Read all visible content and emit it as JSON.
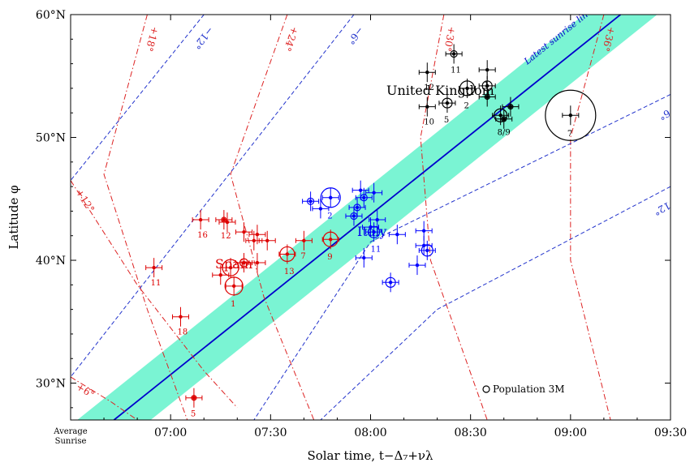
{
  "chart_data": {
    "type": "scatter",
    "xlabel": "Solar time, t−Δ₇+νλ",
    "ylabel": "Latitude φ",
    "xlim": [
      "06:30",
      "09:30"
    ],
    "ylim": [
      27,
      60
    ],
    "x_ticks": [
      "07:00",
      "07:30",
      "08:00",
      "08:30",
      "09:00",
      "09:30"
    ],
    "x_tick_first": [
      "Average",
      "Sunrise"
    ],
    "y_ticks": [
      {
        "value": 30,
        "label": "30°N"
      },
      {
        "value": 40,
        "label": "40°N"
      },
      {
        "value": 50,
        "label": "50°N"
      },
      {
        "value": 60,
        "label": "60°N"
      }
    ],
    "grid": false,
    "latest_sunrise_line": {
      "label": "Latest sunrise line",
      "points": [
        [
          "06:43",
          27
        ],
        [
          "09:15",
          60
        ]
      ],
      "band_half_width_minutes": 11
    },
    "contours_red": [
      {
        "label": "+18°",
        "points": [
          [
            "06:53",
            60
          ],
          [
            "06:40",
            47
          ],
          [
            "06:53",
            36
          ],
          [
            "07:05",
            27
          ]
        ]
      },
      {
        "label": "+24°",
        "points": [
          [
            "07:35",
            60
          ],
          [
            "07:18",
            47
          ],
          [
            "07:28",
            37
          ],
          [
            "07:43",
            27
          ]
        ]
      },
      {
        "label": "+30°",
        "points": [
          [
            "08:22",
            60
          ],
          [
            "08:15",
            50
          ],
          [
            "08:18",
            40
          ],
          [
            "08:35",
            27
          ]
        ]
      },
      {
        "label": "+36°",
        "points": [
          [
            "09:10",
            60
          ],
          [
            "09:00",
            50
          ],
          [
            "09:00",
            40
          ],
          [
            "09:12",
            27
          ]
        ]
      },
      {
        "label": "+12°",
        "points": [
          [
            "06:30",
            46.5
          ],
          [
            "06:50",
            38
          ],
          [
            "07:10",
            31
          ],
          [
            "07:20",
            28
          ]
        ]
      },
      {
        "label": "+6°",
        "points": [
          [
            "06:30",
            30.5
          ],
          [
            "06:42",
            28.5
          ],
          [
            "06:50",
            27
          ]
        ]
      }
    ],
    "contours_blue": [
      {
        "label": "−12°",
        "points": [
          [
            "07:10",
            60
          ],
          [
            "06:30",
            46.5
          ]
        ]
      },
      {
        "label": "−6°",
        "points": [
          [
            "07:55",
            60
          ],
          [
            "06:30",
            30.5
          ]
        ]
      },
      {
        "label": "+6°",
        "points": [
          [
            "09:30",
            53.5
          ],
          [
            "08:00",
            41.5
          ],
          [
            "07:25",
            27
          ]
        ]
      },
      {
        "label": "+12°",
        "points": [
          [
            "09:30",
            46
          ],
          [
            "08:20",
            36
          ],
          [
            "07:45",
            27
          ]
        ]
      }
    ],
    "series": [
      {
        "name": "United Kingdom",
        "color": "#000000",
        "points": [
          {
            "x": "08:25",
            "y": 56.8,
            "r": 4,
            "label": "11"
          },
          {
            "x": "08:17",
            "y": 55.3,
            "r": 0,
            "label": "12"
          },
          {
            "x": "08:35",
            "y": 55.5,
            "r": 0,
            "label": "1"
          },
          {
            "x": "08:29",
            "y": 54.0,
            "r": 9,
            "label": "2"
          },
          {
            "x": "08:35",
            "y": 54.2,
            "r": 6,
            "label": ""
          },
          {
            "x": "08:35",
            "y": 53.3,
            "r": 3,
            "label": ""
          },
          {
            "x": "08:23",
            "y": 52.8,
            "r": 6,
            "label": "5"
          },
          {
            "x": "08:17",
            "y": 52.5,
            "r": 0,
            "label": "10"
          },
          {
            "x": "08:42",
            "y": 52.5,
            "r": 3,
            "label": ""
          },
          {
            "x": "08:39",
            "y": 51.8,
            "r": 8,
            "label": "8/9"
          },
          {
            "x": "08:40",
            "y": 51.5,
            "r": 3,
            "label": ""
          },
          {
            "x": "09:00",
            "y": 51.8,
            "r": 31,
            "label": "7"
          }
        ]
      },
      {
        "name": "Italy",
        "color": "#0000ff",
        "points": [
          {
            "x": "07:48",
            "y": 45.1,
            "r": 12,
            "label": "2"
          },
          {
            "x": "07:42",
            "y": 44.8,
            "r": 4,
            "label": ""
          },
          {
            "x": "07:45",
            "y": 44.2,
            "r": 0,
            "label": ""
          },
          {
            "x": "07:57",
            "y": 45.7,
            "r": 0,
            "label": ""
          },
          {
            "x": "08:01",
            "y": 45.5,
            "r": 0,
            "label": ""
          },
          {
            "x": "07:58",
            "y": 45.1,
            "r": 4,
            "label": ""
          },
          {
            "x": "07:56",
            "y": 44.3,
            "r": 4,
            "label": ""
          },
          {
            "x": "07:55",
            "y": 43.6,
            "r": 4,
            "label": ""
          },
          {
            "x": "08:02",
            "y": 43.3,
            "r": 0,
            "label": ""
          },
          {
            "x": "08:00",
            "y": 42.7,
            "r": 0,
            "label": ""
          },
          {
            "x": "08:01",
            "y": 42.3,
            "r": 7,
            "label": "11"
          },
          {
            "x": "08:08",
            "y": 42.1,
            "r": 0,
            "label": ""
          },
          {
            "x": "08:16",
            "y": 42.4,
            "r": 0,
            "label": ""
          },
          {
            "x": "08:16",
            "y": 41.2,
            "r": 0,
            "label": ""
          },
          {
            "x": "08:17",
            "y": 40.8,
            "r": 7,
            "label": ""
          },
          {
            "x": "07:58",
            "y": 40.2,
            "r": 0,
            "label": ""
          },
          {
            "x": "08:14",
            "y": 39.6,
            "r": 0,
            "label": ""
          },
          {
            "x": "08:06",
            "y": 38.2,
            "r": 6,
            "label": ""
          }
        ]
      },
      {
        "name": "Spain",
        "color": "#dd0000",
        "points": [
          {
            "x": "07:09",
            "y": 43.3,
            "r": 0,
            "label": "16"
          },
          {
            "x": "07:16",
            "y": 43.3,
            "r": 3,
            "label": "12"
          },
          {
            "x": "07:17",
            "y": 43.1,
            "r": 0,
            "label": ""
          },
          {
            "x": "07:22",
            "y": 42.3,
            "r": 0,
            "label": ""
          },
          {
            "x": "07:26",
            "y": 42.1,
            "r": 0,
            "label": ""
          },
          {
            "x": "07:25",
            "y": 41.6,
            "r": 0,
            "label": ""
          },
          {
            "x": "07:29",
            "y": 41.6,
            "r": 0,
            "label": ""
          },
          {
            "x": "07:40",
            "y": 41.6,
            "r": 0,
            "label": "7"
          },
          {
            "x": "07:48",
            "y": 41.7,
            "r": 9,
            "label": "9"
          },
          {
            "x": "07:35",
            "y": 40.5,
            "r": 9,
            "label": "13"
          },
          {
            "x": "07:22",
            "y": 39.8,
            "r": 5,
            "label": ""
          },
          {
            "x": "07:26",
            "y": 39.8,
            "r": 0,
            "label": ""
          },
          {
            "x": "07:18",
            "y": 39.4,
            "r": 10,
            "label": ""
          },
          {
            "x": "07:15",
            "y": 38.8,
            "r": 0,
            "label": ""
          },
          {
            "x": "06:55",
            "y": 39.4,
            "r": 0,
            "label": "11"
          },
          {
            "x": "07:19",
            "y": 37.9,
            "r": 11,
            "label": "1"
          },
          {
            "x": "07:03",
            "y": 35.4,
            "r": 0,
            "label": "18"
          },
          {
            "x": "07:07",
            "y": 28.8,
            "r": 3,
            "label": "5"
          }
        ]
      }
    ],
    "annotations": {
      "uk": "United Kingdom",
      "italy": "Italy",
      "spain": "Spain",
      "population": "Population 3M"
    }
  }
}
